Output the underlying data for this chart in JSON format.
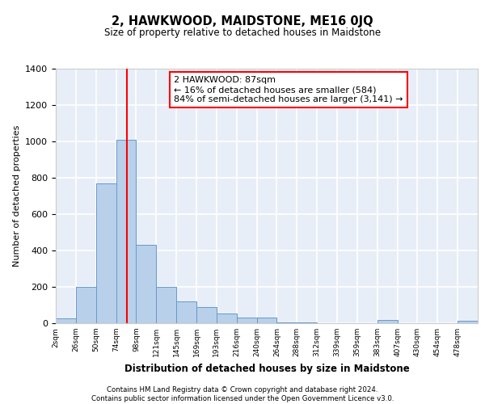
{
  "title": "2, HAWKWOOD, MAIDSTONE, ME16 0JQ",
  "subtitle": "Size of property relative to detached houses in Maidstone",
  "xlabel": "Distribution of detached houses by size in Maidstone",
  "ylabel": "Number of detached properties",
  "bin_labels": [
    "2sqm",
    "26sqm",
    "50sqm",
    "74sqm",
    "98sqm",
    "121sqm",
    "145sqm",
    "169sqm",
    "193sqm",
    "216sqm",
    "240sqm",
    "264sqm",
    "288sqm",
    "312sqm",
    "339sqm",
    "359sqm",
    "383sqm",
    "407sqm",
    "430sqm",
    "454sqm",
    "478sqm"
  ],
  "bar_heights": [
    25,
    200,
    770,
    1010,
    430,
    200,
    120,
    90,
    55,
    30,
    30,
    5,
    5,
    0,
    0,
    0,
    20,
    0,
    0,
    0,
    15
  ],
  "bar_color": "#b8d0ea",
  "bar_edge_color": "#6699cc",
  "annotation_text": "2 HAWKWOOD: 87sqm\n← 16% of detached houses are smaller (584)\n84% of semi-detached houses are larger (3,141) →",
  "annotation_box_color": "white",
  "annotation_box_edge_color": "red",
  "ylim": [
    0,
    1400
  ],
  "yticks": [
    0,
    200,
    400,
    600,
    800,
    1000,
    1200,
    1400
  ],
  "footer_line1": "Contains HM Land Registry data © Crown copyright and database right 2024.",
  "footer_line2": "Contains public sector information licensed under the Open Government Licence v3.0.",
  "background_color": "#e8eef8",
  "grid_color": "white"
}
